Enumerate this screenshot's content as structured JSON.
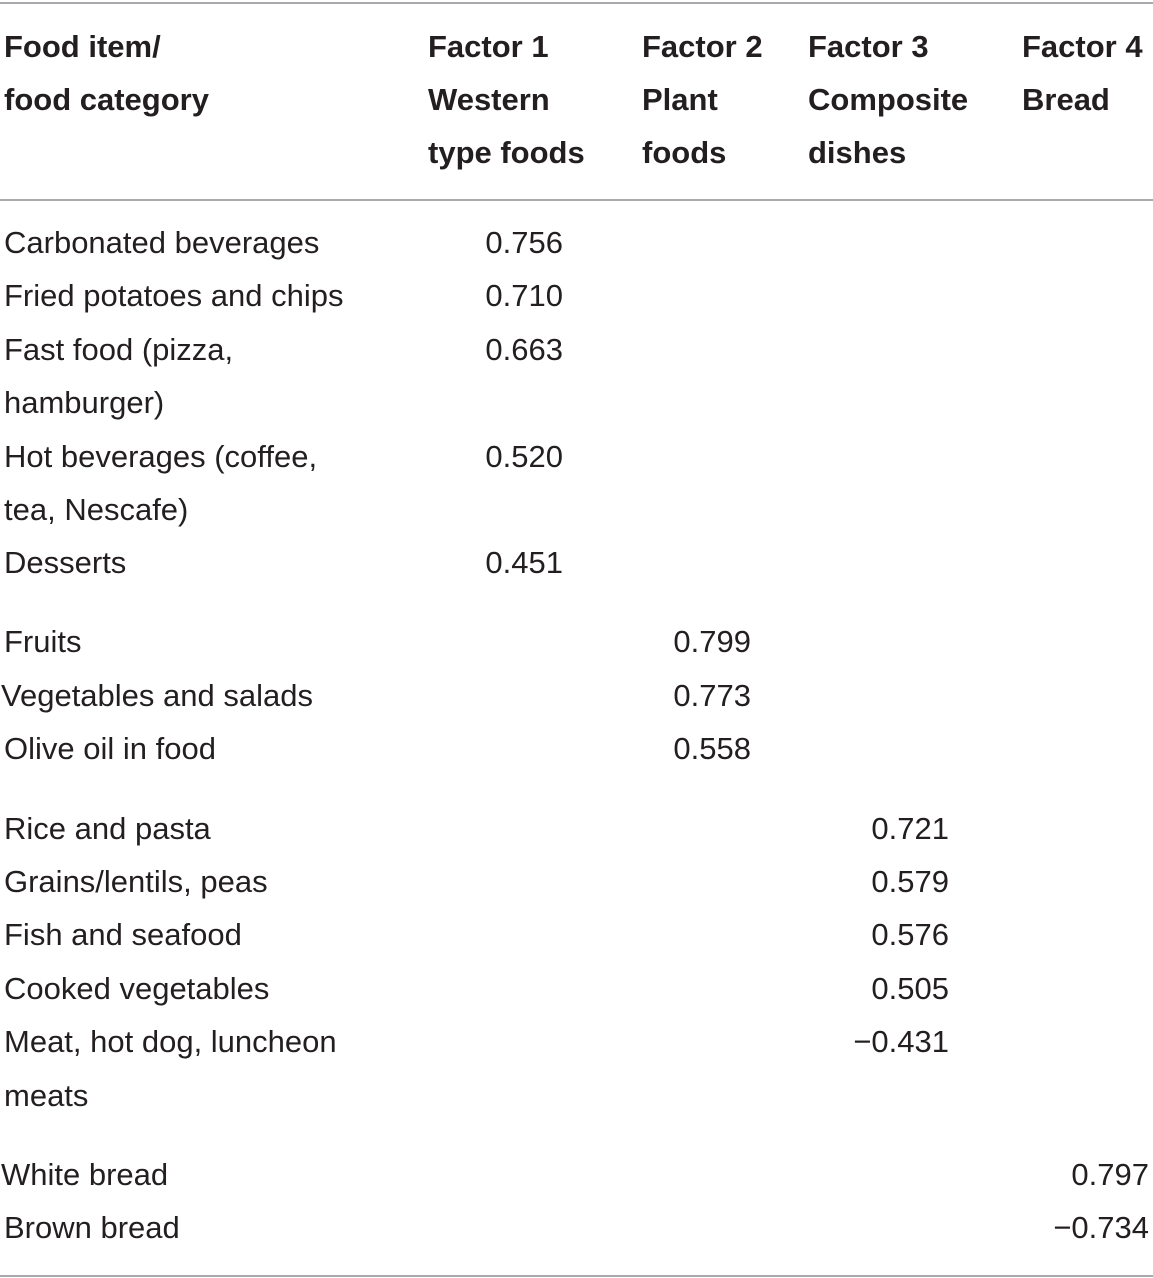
{
  "headers": {
    "col0": [
      "Food item/",
      "food category"
    ],
    "col1": [
      "Factor 1",
      "Western",
      "type foods"
    ],
    "col2": [
      "Factor 2",
      "Plant",
      "foods"
    ],
    "col3": [
      "Factor 3",
      "Composite",
      "dishes"
    ],
    "col4": [
      "Factor 4",
      "Bread"
    ]
  },
  "rows": [
    {
      "label": [
        "Carbonated beverages"
      ],
      "factor": 1,
      "value": "0.756"
    },
    {
      "label": [
        "Fried potatoes and chips"
      ],
      "factor": 1,
      "value": "0.710"
    },
    {
      "label": [
        "Fast food (pizza,",
        "hamburger)"
      ],
      "factor": 1,
      "value": "0.663"
    },
    {
      "label": [
        "Hot beverages (coffee,",
        "tea, Nescafe)"
      ],
      "factor": 1,
      "value": "0.520"
    },
    {
      "label": [
        "Desserts"
      ],
      "factor": 1,
      "value": "0.451"
    },
    {
      "label": [
        "Fruits"
      ],
      "factor": 2,
      "value": "0.799"
    },
    {
      "label": [
        "Vegetables and salads"
      ],
      "factor": 2,
      "value": "0.773"
    },
    {
      "label": [
        "Olive oil in food"
      ],
      "factor": 2,
      "value": "0.558"
    },
    {
      "label": [
        "Rice and pasta"
      ],
      "factor": 3,
      "value": "0.721"
    },
    {
      "label": [
        "Grains/lentils, peas"
      ],
      "factor": 3,
      "value": "0.579"
    },
    {
      "label": [
        "Fish and seafood"
      ],
      "factor": 3,
      "value": "0.576"
    },
    {
      "label": [
        "Cooked vegetables"
      ],
      "factor": 3,
      "value": "0.505"
    },
    {
      "label": [
        "Meat, hot dog, luncheon",
        "meats"
      ],
      "factor": 3,
      "value": "−0.431"
    },
    {
      "label": [
        "White bread"
      ],
      "factor": 4,
      "value": "0.797"
    },
    {
      "label": [
        "Brown bread"
      ],
      "factor": 4,
      "value": "−0.734"
    }
  ]
}
